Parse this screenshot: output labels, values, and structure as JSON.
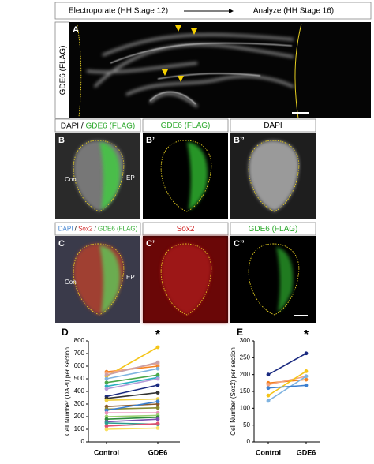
{
  "header": [
    "Electroporate (HH Stage 12)",
    "Analyze (HH Stage 16)"
  ],
  "panel_a": {
    "label": "A",
    "side_label": "GDE6 (FLAG)"
  },
  "row_b": [
    {
      "label": "B",
      "title": [
        "DAPI",
        " / ",
        "GDE6 (FLAG)"
      ],
      "notes": [
        "Con",
        "EP"
      ]
    },
    {
      "label": "B’",
      "title": "GDE6 (FLAG)"
    },
    {
      "label": "B’’",
      "title": "DAPI"
    }
  ],
  "row_c": [
    {
      "label": "C",
      "title": [
        "DAPI",
        " / ",
        "Sox2",
        " / ",
        "GDE6 (FLAG)"
      ],
      "notes": [
        "Con",
        "EP"
      ]
    },
    {
      "label": "C’",
      "title": "Sox2"
    },
    {
      "label": "C’’",
      "title": "GDE6 (FLAG)"
    }
  ],
  "chart_data": [
    {
      "type": "line",
      "label": "D",
      "annotation": "*",
      "ylabel": "Cell Number (DAPI) per section",
      "categories": [
        "Control",
        "GDE6"
      ],
      "ylim": [
        0,
        800
      ],
      "yticks": [
        0,
        100,
        200,
        300,
        400,
        500,
        600,
        700,
        800
      ],
      "series": [
        {
          "color": "#f58220",
          "values": [
            555,
            600
          ]
        },
        {
          "color": "#f5c518",
          "values": [
            520,
            750
          ]
        },
        {
          "color": "#f4a582",
          "values": [
            545,
            620
          ]
        },
        {
          "color": "#c8a0a8",
          "values": [
            530,
            630
          ]
        },
        {
          "color": "#7fb3e0",
          "values": [
            500,
            580
          ]
        },
        {
          "color": "#4aa84a",
          "values": [
            470,
            530
          ]
        },
        {
          "color": "#2bb0c0",
          "values": [
            440,
            510
          ]
        },
        {
          "color": "#b49ad8",
          "values": [
            420,
            500
          ]
        },
        {
          "color": "#1a2a80",
          "values": [
            360,
            450
          ]
        },
        {
          "color": "#333333",
          "values": [
            345,
            390
          ]
        },
        {
          "color": "#f0d040",
          "values": [
            330,
            340
          ]
        },
        {
          "color": "#8b5a2b",
          "values": [
            280,
            300
          ]
        },
        {
          "color": "#8a8a30",
          "values": [
            260,
            270
          ]
        },
        {
          "color": "#3b7fd0",
          "values": [
            250,
            320
          ]
        },
        {
          "color": "#e890b8",
          "values": [
            230,
            230
          ]
        },
        {
          "color": "#9ad070",
          "values": [
            200,
            210
          ]
        },
        {
          "color": "#2e8b3e",
          "values": [
            180,
            195
          ]
        },
        {
          "color": "#7a4fb0",
          "values": [
            160,
            180
          ]
        },
        {
          "color": "#2a9d8f",
          "values": [
            150,
            140
          ]
        },
        {
          "color": "#e05070",
          "values": [
            125,
            145
          ]
        },
        {
          "color": "#f8e060",
          "values": [
            100,
            110
          ]
        }
      ]
    },
    {
      "type": "line",
      "label": "E",
      "annotation": "*",
      "ylabel": "Cell Number (Sox2) per section",
      "categories": [
        "Control",
        "GDE6"
      ],
      "ylim": [
        0,
        300
      ],
      "yticks": [
        0,
        50,
        100,
        150,
        200,
        250,
        300
      ],
      "series": [
        {
          "color": "#1a2a80",
          "values": [
            200,
            263
          ]
        },
        {
          "color": "#f58220",
          "values": [
            175,
            185
          ]
        },
        {
          "color": "#f4a582",
          "values": [
            170,
            195
          ]
        },
        {
          "color": "#f5c518",
          "values": [
            138,
            210
          ]
        },
        {
          "color": "#7fb3e0",
          "values": [
            122,
            195
          ]
        },
        {
          "color": "#3b7fd0",
          "values": [
            160,
            168
          ]
        }
      ]
    }
  ]
}
